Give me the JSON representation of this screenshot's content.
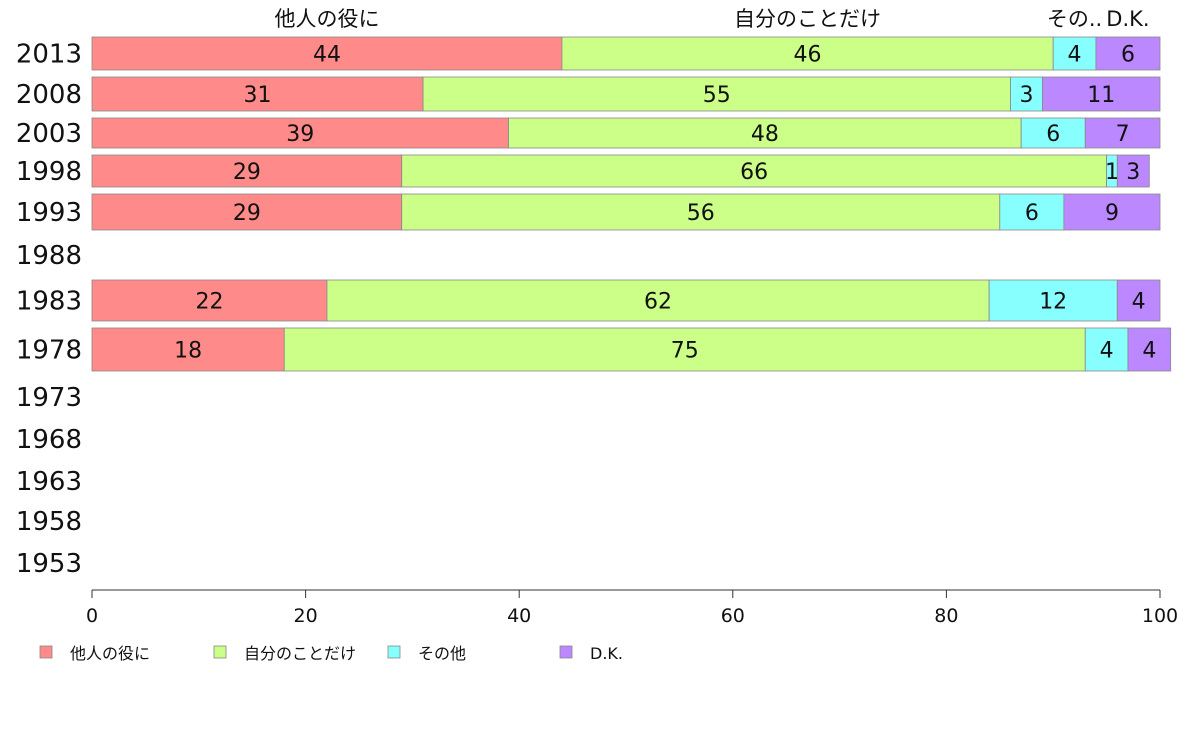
{
  "chart_data": {
    "type": "bar",
    "orientation": "horizontal",
    "stacked": true,
    "categories": [
      "2013",
      "2008",
      "2003",
      "1998",
      "1993",
      "1988",
      "1983",
      "1978",
      "1973",
      "1968",
      "1963",
      "1958",
      "1953"
    ],
    "series": [
      {
        "name": "他人の役に",
        "color": "#ff8a8a",
        "values": [
          44,
          31,
          39,
          29,
          29,
          null,
          22,
          18,
          null,
          null,
          null,
          null,
          null
        ]
      },
      {
        "name": "自分のことだけ",
        "color": "#ccff88",
        "values": [
          46,
          55,
          48,
          66,
          56,
          null,
          62,
          75,
          null,
          null,
          null,
          null,
          null
        ]
      },
      {
        "name": "その他",
        "color": "#88ffff",
        "values": [
          4,
          3,
          6,
          1,
          6,
          null,
          12,
          4,
          null,
          null,
          null,
          null,
          null
        ]
      },
      {
        "name": "D.K.",
        "color": "#bb88ff",
        "values": [
          6,
          11,
          7,
          3,
          9,
          null,
          4,
          4,
          null,
          null,
          null,
          null,
          null
        ]
      }
    ],
    "top_labels": [
      "他人の役に",
      "自分のことだけ",
      "その..",
      "D.K."
    ],
    "xlim": [
      0,
      100
    ],
    "xticks": [
      0,
      20,
      40,
      60,
      80,
      100
    ],
    "grid": false,
    "legend_position": "bottom"
  }
}
